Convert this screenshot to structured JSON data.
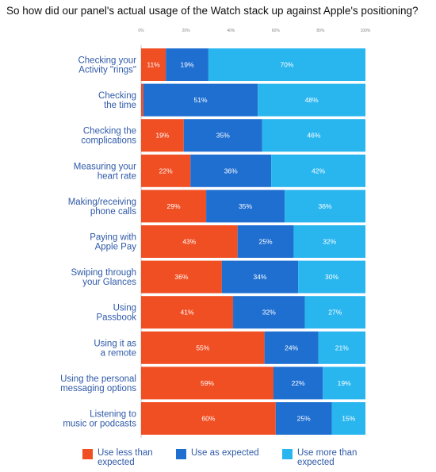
{
  "title": "So how did our panel's actual usage of the Watch stack up against Apple's positioning?",
  "chart_data": {
    "type": "bar",
    "orientation": "horizontal",
    "stacked": true,
    "percent_stacked": true,
    "xlim": [
      0,
      100
    ],
    "x_ticks": [
      "0%",
      "20%",
      "40%",
      "60%",
      "80%",
      "100%"
    ],
    "categories": [
      "Checking your Activity \"rings\"",
      "Checking the time",
      "Checking the complications",
      "Measuring your heart rate",
      "Making/receiving phone calls",
      "Paying with Apple Pay",
      "Swiping through your Glances",
      "Using Passbook",
      "Using it as a remote",
      "Using the personal messaging options",
      "Listening to music or podcasts"
    ],
    "category_lines": [
      [
        "Checking your",
        "Activity \"rings\""
      ],
      [
        "Checking",
        "the time"
      ],
      [
        "Checking the",
        "complications"
      ],
      [
        "Measuring your",
        "heart rate"
      ],
      [
        "Making/receiving",
        "phone calls"
      ],
      [
        "Paying with",
        "Apple Pay"
      ],
      [
        "Swiping through",
        "your Glances"
      ],
      [
        "Using",
        "Passbook"
      ],
      [
        "Using it as",
        "a remote"
      ],
      [
        "Using the personal",
        "messaging options"
      ],
      [
        "Listening to",
        "music or podcasts"
      ]
    ],
    "series": [
      {
        "name": "Use less than expected",
        "color": "#f04e23",
        "values": [
          11,
          1,
          19,
          22,
          29,
          43,
          36,
          41,
          55,
          59,
          60
        ],
        "labels": [
          "11%",
          "",
          "19%",
          "22%",
          "29%",
          "43%",
          "36%",
          "41%",
          "55%",
          "59%",
          "60%"
        ]
      },
      {
        "name": "Use as expected",
        "color": "#1f6fd1",
        "values": [
          19,
          51,
          35,
          36,
          35,
          25,
          34,
          32,
          24,
          22,
          25
        ],
        "labels": [
          "19%",
          "51%",
          "35%",
          "36%",
          "35%",
          "25%",
          "34%",
          "32%",
          "24%",
          "22%",
          "25%"
        ]
      },
      {
        "name": "Use more than expected",
        "color": "#29b6ef",
        "values": [
          70,
          48,
          46,
          42,
          36,
          32,
          30,
          27,
          21,
          19,
          15
        ],
        "labels": [
          "70%",
          "48%",
          "46%",
          "42%",
          "36%",
          "32%",
          "30%",
          "27%",
          "21%",
          "19%",
          "15%"
        ]
      }
    ],
    "legend_position": "bottom",
    "grid": false
  },
  "legend": [
    {
      "label": "Use less than expected",
      "color": "#f04e23"
    },
    {
      "label": "Use as expected",
      "color": "#1f6fd1"
    },
    {
      "label": "Use more than expected",
      "color": "#29b6ef"
    }
  ]
}
